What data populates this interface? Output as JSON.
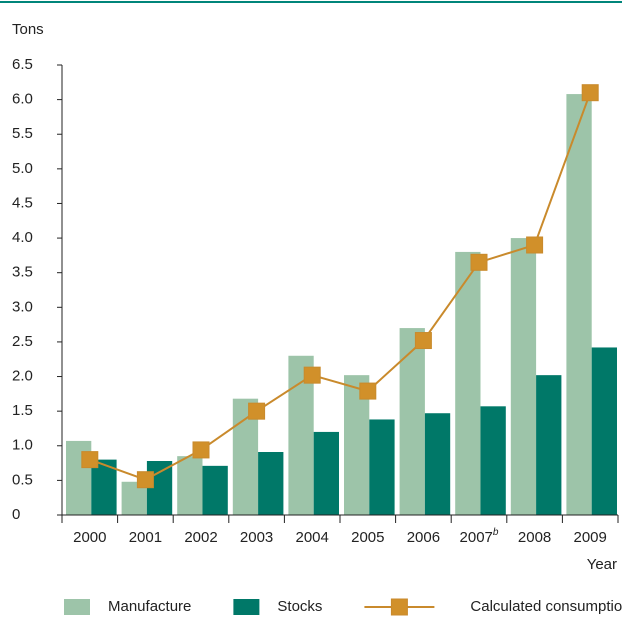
{
  "chart_data": {
    "type": "bar_line",
    "y_axis_label": "Tons",
    "x_axis_label": "Year",
    "categories": [
      "2000",
      "2001",
      "2002",
      "2003",
      "2004",
      "2005",
      "2006",
      "2007",
      "2008",
      "2009"
    ],
    "category_footnotes": [
      {
        "index": 7,
        "mark": "b"
      }
    ],
    "series": [
      {
        "name": "Manufacture",
        "type": "bar",
        "color": "#9dc4a9",
        "values": [
          1.07,
          0.48,
          0.85,
          1.68,
          2.3,
          2.02,
          2.7,
          3.8,
          4.0,
          6.08
        ]
      },
      {
        "name": "Stocks",
        "type": "bar",
        "color": "#007868",
        "values": [
          0.8,
          0.78,
          0.71,
          0.91,
          1.2,
          1.38,
          1.47,
          1.57,
          2.02,
          2.42
        ]
      },
      {
        "name": "Calculated consumption",
        "type": "line",
        "color": "#c98a2c",
        "marker_color": "#d1902a",
        "values": [
          0.8,
          0.51,
          0.94,
          1.5,
          2.02,
          1.79,
          2.52,
          3.65,
          3.9,
          6.1
        ]
      }
    ],
    "ylim": [
      0,
      6.5
    ],
    "yticks": [
      0,
      0.5,
      {
        "value": 1,
        "label": "1.0"
      },
      1.5,
      {
        "value": 2,
        "label": "2.0"
      },
      2.5,
      {
        "value": 3,
        "label": "3.0"
      },
      3.5,
      {
        "value": 4,
        "label": "4.0"
      },
      4.5,
      {
        "value": 5,
        "label": "5.0"
      },
      5.5,
      {
        "value": 6,
        "label": "6.0"
      },
      6.5
    ],
    "grid": false,
    "legend": "bottom"
  }
}
